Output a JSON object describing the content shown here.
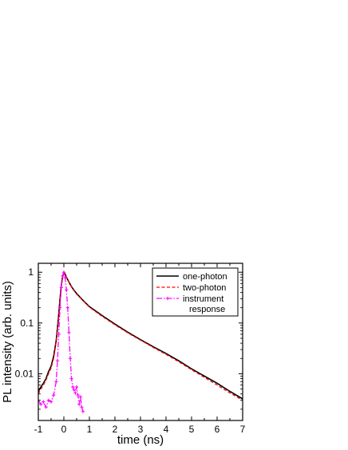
{
  "chart_data": {
    "type": "line",
    "title": "",
    "xlabel": "time (ns)",
    "ylabel": "PL intensity (arb. units)",
    "xlim": [
      -1,
      7
    ],
    "ylim": [
      0.0012,
      1.5
    ],
    "yscale": "log",
    "xticks": [
      -1,
      0,
      1,
      2,
      3,
      4,
      5,
      6,
      7
    ],
    "xtick_labels": [
      "-1",
      "0",
      "1",
      "2",
      "3",
      "4",
      "5",
      "6",
      "7"
    ],
    "yticks": [
      0.01,
      0.1,
      1
    ],
    "ytick_labels": [
      "0.01",
      "0.1",
      "1"
    ],
    "grid": false,
    "legend_position": "top-right",
    "series": [
      {
        "name": "one-photon",
        "color": "#000000",
        "style": "solid",
        "x": [
          -1.0,
          -0.9,
          -0.8,
          -0.7,
          -0.6,
          -0.5,
          -0.4,
          -0.3,
          -0.25,
          -0.2,
          -0.15,
          -0.1,
          -0.05,
          0.0,
          0.05,
          0.1,
          0.2,
          0.3,
          0.4,
          0.5,
          0.75,
          1.0,
          1.5,
          2.0,
          2.5,
          3.0,
          3.5,
          4.0,
          4.5,
          5.0,
          5.5,
          6.0,
          6.5,
          7.0
        ],
        "y": [
          0.0045,
          0.0055,
          0.0065,
          0.008,
          0.011,
          0.014,
          0.022,
          0.045,
          0.08,
          0.15,
          0.3,
          0.55,
          0.82,
          1.0,
          0.92,
          0.8,
          0.64,
          0.52,
          0.44,
          0.38,
          0.28,
          0.21,
          0.14,
          0.095,
          0.066,
          0.047,
          0.034,
          0.025,
          0.018,
          0.0125,
          0.009,
          0.0065,
          0.0045,
          0.0032
        ]
      },
      {
        "name": "two-photon",
        "color": "#ff0000",
        "style": "dashed",
        "x": [
          -1.0,
          -0.9,
          -0.8,
          -0.7,
          -0.6,
          -0.5,
          -0.4,
          -0.3,
          -0.25,
          -0.2,
          -0.15,
          -0.1,
          -0.05,
          0.0,
          0.05,
          0.1,
          0.2,
          0.3,
          0.4,
          0.5,
          0.75,
          1.0,
          1.5,
          2.0,
          2.5,
          3.0,
          3.5,
          4.0,
          4.5,
          5.0,
          5.5,
          6.0,
          6.5,
          7.0
        ],
        "y": [
          0.004,
          0.005,
          0.006,
          0.0075,
          0.01,
          0.013,
          0.02,
          0.042,
          0.075,
          0.14,
          0.28,
          0.52,
          0.8,
          1.0,
          0.91,
          0.79,
          0.63,
          0.51,
          0.43,
          0.37,
          0.275,
          0.205,
          0.135,
          0.092,
          0.064,
          0.046,
          0.033,
          0.024,
          0.0172,
          0.012,
          0.0085,
          0.006,
          0.0042,
          0.003
        ]
      },
      {
        "name": "instrument response",
        "color": "#ff00ff",
        "style": "dash-dot",
        "marker": "+",
        "x": [
          -1.0,
          -0.9,
          -0.8,
          -0.7,
          -0.6,
          -0.5,
          -0.4,
          -0.3,
          -0.25,
          -0.2,
          -0.15,
          -0.1,
          -0.05,
          0.0,
          0.05,
          0.1,
          0.15,
          0.2,
          0.25,
          0.3,
          0.35,
          0.4,
          0.45,
          0.5,
          0.55,
          0.6,
          0.65,
          0.7,
          0.75
        ],
        "y": [
          0.003,
          0.0025,
          0.0028,
          0.0022,
          0.003,
          0.0028,
          0.0038,
          0.007,
          0.018,
          0.06,
          0.2,
          0.5,
          0.85,
          1.0,
          0.78,
          0.45,
          0.2,
          0.065,
          0.02,
          0.008,
          0.0055,
          0.0048,
          0.0042,
          0.0055,
          0.0038,
          0.0025,
          0.0035,
          0.0022,
          0.0018
        ]
      }
    ],
    "legend": {
      "entries": [
        "one-photon",
        "two-photon",
        "instrument",
        "response"
      ]
    }
  }
}
